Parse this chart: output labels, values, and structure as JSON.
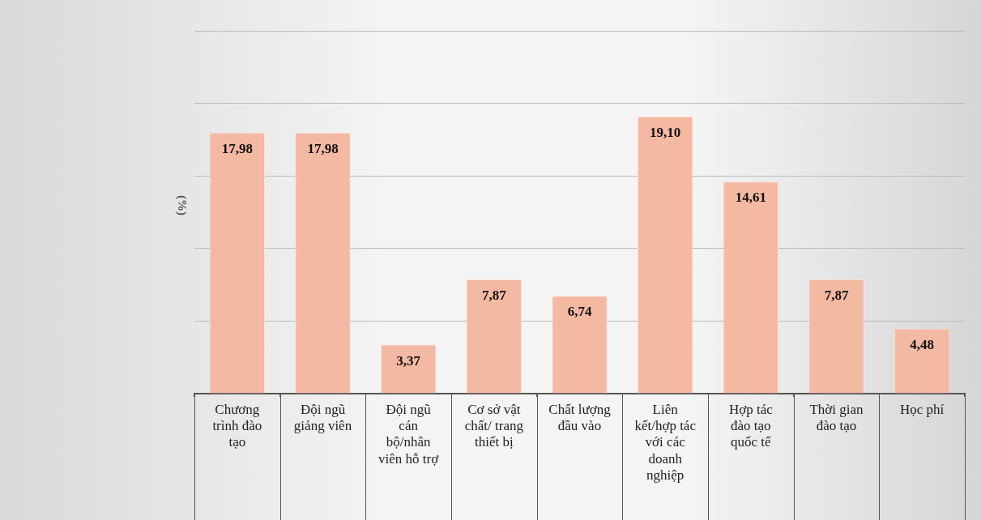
{
  "chart_data": {
    "type": "bar",
    "ylabel": "(%)",
    "categories": [
      "Chương trình đào tạo",
      "Đội ngũ giảng viên",
      "Đội ngũ cán bộ/nhân viên hỗ trợ",
      "Cơ sở vật chất/ trang thiết bị",
      "Chất lượng đầu vào",
      "Liên kết/hợp tác với các doanh nghiệp",
      "Hợp tác đào tạo quốc tế",
      "Thời gian đào tạo",
      "Học phí"
    ],
    "values": [
      17.98,
      17.98,
      3.37,
      7.87,
      6.74,
      19.1,
      14.61,
      7.87,
      4.48
    ],
    "value_labels": [
      "17,98",
      "17,98",
      "3,37",
      "7,87",
      "6,74",
      "19,10",
      "14,61",
      "7,87",
      "4,48"
    ],
    "color": "#f4b9a3",
    "ylim": [
      0,
      25
    ],
    "yticks": [
      {
        "value": 0,
        "label": null
      },
      {
        "value": 5,
        "label": null
      },
      {
        "value": 10,
        "label": null
      },
      {
        "value": 15,
        "label": null
      },
      {
        "value": 20,
        "label": null
      },
      {
        "value": 25,
        "label": null
      }
    ],
    "grid": "y",
    "tick_labels": "x"
  }
}
